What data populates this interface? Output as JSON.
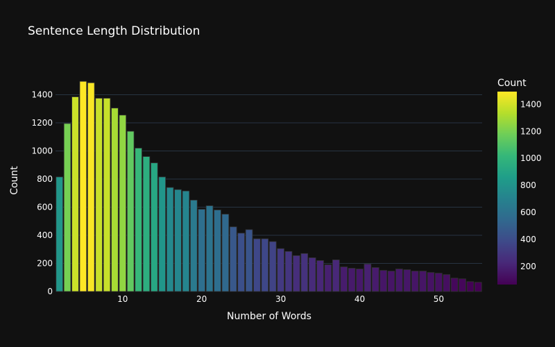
{
  "chart_data": {
    "type": "bar",
    "title": "Sentence Length Distribution",
    "xlabel": "Number of Words",
    "ylabel": "Count",
    "x": [
      2,
      3,
      4,
      5,
      6,
      7,
      8,
      9,
      10,
      11,
      12,
      13,
      14,
      15,
      16,
      17,
      18,
      19,
      20,
      21,
      22,
      23,
      24,
      25,
      26,
      27,
      28,
      29,
      30,
      31,
      32,
      33,
      34,
      35,
      36,
      37,
      38,
      39,
      40,
      41,
      42,
      43,
      44,
      45,
      46,
      47,
      48,
      49,
      50,
      51,
      52,
      53,
      54,
      55
    ],
    "values": [
      815,
      1195,
      1385,
      1495,
      1485,
      1375,
      1375,
      1305,
      1255,
      1140,
      1020,
      960,
      915,
      815,
      740,
      725,
      715,
      650,
      585,
      610,
      580,
      550,
      460,
      415,
      440,
      375,
      375,
      355,
      305,
      285,
      255,
      270,
      240,
      220,
      190,
      225,
      175,
      165,
      160,
      195,
      170,
      150,
      145,
      160,
      155,
      145,
      145,
      135,
      130,
      120,
      95,
      90,
      70,
      65
    ],
    "xlim": [
      1.5,
      55.5
    ],
    "ylim": [
      0,
      1580
    ],
    "x_ticks": [
      "10",
      "20",
      "30",
      "40",
      "50"
    ],
    "y_ticks": [
      "0",
      "200",
      "400",
      "600",
      "800",
      "1000",
      "1200",
      "1400"
    ],
    "grid": true,
    "colorscale": "Viridis",
    "colorbar": {
      "title": "Count",
      "range": [
        65,
        1495
      ],
      "ticks": [
        "200",
        "400",
        "600",
        "800",
        "1000",
        "1200",
        "1400"
      ]
    }
  }
}
